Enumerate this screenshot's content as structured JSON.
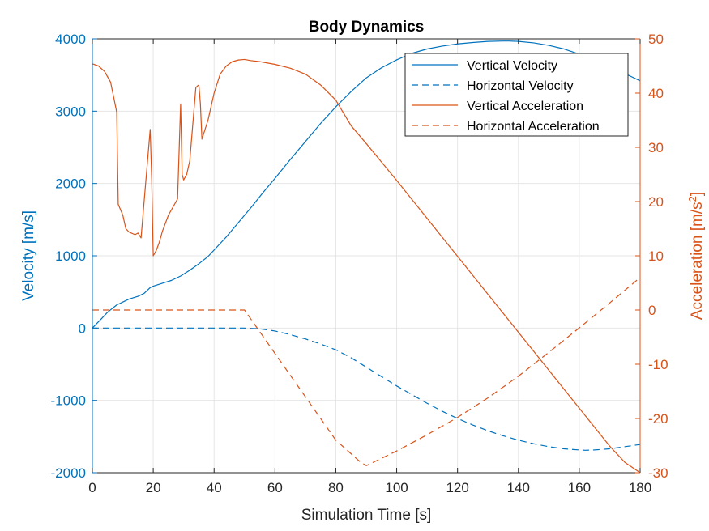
{
  "chart_data": {
    "type": "line",
    "title": "Body Dynamics",
    "xlabel": "Simulation Time [s]",
    "ylabel_left": "Velocity [m/s]",
    "ylabel_right_main": "Acceleration [m/s",
    "ylabel_right_sup": "2",
    "ylabel_right_tail": "]",
    "xlim": [
      0,
      180
    ],
    "ylim_left": [
      -2000,
      4000
    ],
    "ylim_right": [
      -30,
      50
    ],
    "x_ticks": [
      0,
      20,
      40,
      60,
      80,
      100,
      120,
      140,
      160,
      180
    ],
    "x_tick_labels": [
      "0",
      "20",
      "40",
      "60",
      "80",
      "100",
      "120",
      "140",
      "160",
      "180"
    ],
    "y_left_ticks": [
      -2000,
      -1000,
      0,
      1000,
      2000,
      3000,
      4000
    ],
    "y_left_tick_labels": [
      "-2000",
      "-1000",
      "0",
      "1000",
      "2000",
      "3000",
      "4000"
    ],
    "y_right_ticks": [
      -30,
      -20,
      -10,
      0,
      10,
      20,
      30,
      40,
      50
    ],
    "y_right_tick_labels": [
      "-30",
      "-20",
      "-10",
      "0",
      "10",
      "20",
      "30",
      "40",
      "50"
    ],
    "grid": true,
    "legend_position": "top-right",
    "colors": {
      "left": "#0072BD",
      "right": "#D95319",
      "axes": "#262626",
      "grid": "#e6e6e6"
    },
    "series": [
      {
        "name": "Vertical Velocity",
        "axis": "left",
        "style": "solid",
        "x": [
          0,
          3,
          5,
          8,
          10,
          12,
          15,
          17,
          19,
          20,
          23,
          26,
          29,
          32,
          35,
          38,
          40,
          44,
          48,
          52,
          56,
          60,
          65,
          70,
          75,
          80,
          85,
          90,
          95,
          100,
          105,
          110,
          115,
          120,
          125,
          130,
          135,
          137,
          140,
          145,
          150,
          155,
          160,
          165,
          170,
          175,
          180
        ],
        "y": [
          0,
          130,
          220,
          320,
          360,
          400,
          440,
          480,
          560,
          580,
          620,
          660,
          720,
          800,
          890,
          990,
          1080,
          1260,
          1460,
          1660,
          1870,
          2070,
          2330,
          2580,
          2830,
          3060,
          3270,
          3460,
          3600,
          3710,
          3800,
          3860,
          3900,
          3930,
          3950,
          3965,
          3970,
          3970,
          3965,
          3945,
          3910,
          3860,
          3790,
          3700,
          3610,
          3520,
          3420
        ]
      },
      {
        "name": "Horizontal Velocity",
        "axis": "left",
        "style": "dashed",
        "x": [
          0,
          50,
          55,
          60,
          65,
          70,
          75,
          80,
          85,
          90,
          95,
          100,
          105,
          110,
          115,
          120,
          125,
          130,
          135,
          140,
          145,
          150,
          155,
          160,
          162,
          165,
          170,
          175,
          180
        ],
        "y": [
          0,
          0,
          -10,
          -40,
          -90,
          -150,
          -220,
          -300,
          -410,
          -540,
          -670,
          -800,
          -920,
          -1040,
          -1150,
          -1250,
          -1340,
          -1420,
          -1490,
          -1550,
          -1600,
          -1640,
          -1670,
          -1685,
          -1690,
          -1685,
          -1670,
          -1640,
          -1610
        ]
      },
      {
        "name": "Vertical Acceleration",
        "axis": "right",
        "style": "solid",
        "x": [
          0,
          2,
          4,
          6,
          8,
          8.5,
          10,
          11,
          12,
          14,
          15,
          16,
          19,
          19.5,
          20,
          21,
          22,
          23,
          24,
          25,
          26,
          28,
          29,
          29.5,
          30,
          31,
          32,
          34,
          34.5,
          35,
          35.5,
          36,
          38,
          40,
          42,
          44,
          46,
          48,
          50,
          52,
          55,
          60,
          65,
          70,
          75,
          80,
          85,
          90,
          95,
          100,
          105,
          110,
          115,
          120,
          125,
          130,
          135,
          140,
          145,
          150,
          155,
          160,
          165,
          170,
          175,
          180
        ],
        "y": [
          45.4,
          45.0,
          44.0,
          42.0,
          36.5,
          19.5,
          17.5,
          15.0,
          14.4,
          13.9,
          14.2,
          13.3,
          33.3,
          24.0,
          10.0,
          11.0,
          12.5,
          14.5,
          16.0,
          17.5,
          18.5,
          20.5,
          38.0,
          25.0,
          24.0,
          25.0,
          27.5,
          41.0,
          41.3,
          41.5,
          38.0,
          31.5,
          35.0,
          40.0,
          43.5,
          45.0,
          45.8,
          46.1,
          46.2,
          46.0,
          45.8,
          45.3,
          44.6,
          43.5,
          41.5,
          38.7,
          34.0,
          30.7,
          27.3,
          23.9,
          20.4,
          16.9,
          13.4,
          9.9,
          6.4,
          2.9,
          -0.6,
          -4.1,
          -7.6,
          -11.1,
          -14.6,
          -18.1,
          -21.6,
          -25.1,
          -28.1,
          -30.0
        ]
      },
      {
        "name": "Horizontal Acceleration",
        "axis": "right",
        "style": "dashed",
        "x": [
          0,
          50,
          60,
          70,
          80,
          88,
          90,
          100,
          110,
          120,
          130,
          140,
          150,
          160,
          170,
          180
        ],
        "y": [
          0,
          0,
          -8.0,
          -16.0,
          -24.0,
          -28.0,
          -28.7,
          -26.0,
          -23.0,
          -19.8,
          -16.2,
          -12.2,
          -7.8,
          -3.3,
          1.3,
          6.0
        ]
      }
    ]
  }
}
